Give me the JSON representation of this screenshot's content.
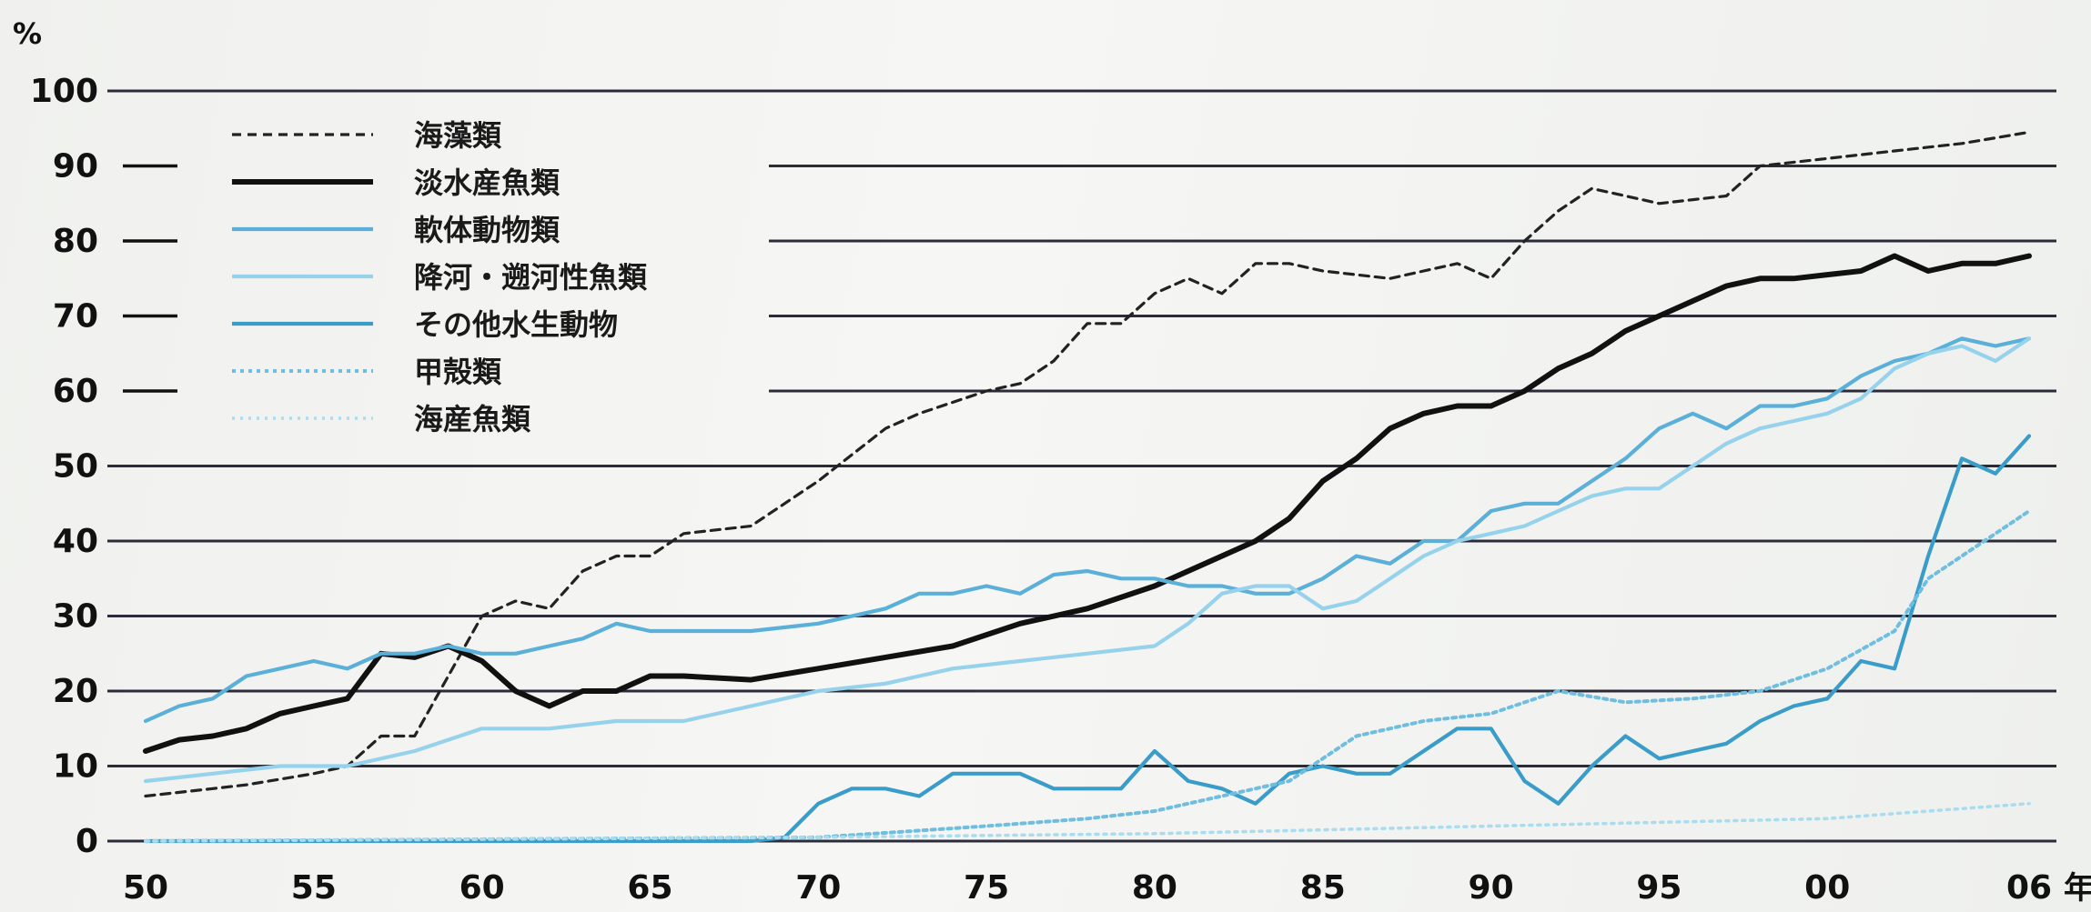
{
  "chart_data": {
    "type": "line",
    "y_unit": "%",
    "x_unit": "年",
    "ylim": [
      0,
      100
    ],
    "yticks": [
      0,
      10,
      20,
      30,
      40,
      50,
      60,
      70,
      80,
      90,
      100
    ],
    "xlim": [
      1950,
      2006
    ],
    "xticks": [
      {
        "value": 1950,
        "label": "50"
      },
      {
        "value": 1955,
        "label": "55"
      },
      {
        "value": 1960,
        "label": "60"
      },
      {
        "value": 1965,
        "label": "65"
      },
      {
        "value": 1970,
        "label": "70"
      },
      {
        "value": 1975,
        "label": "75"
      },
      {
        "value": 1980,
        "label": "80"
      },
      {
        "value": 1985,
        "label": "85"
      },
      {
        "value": 1990,
        "label": "90"
      },
      {
        "value": 1995,
        "label": "95"
      },
      {
        "value": 2000,
        "label": "00"
      },
      {
        "value": 2006,
        "label": "06"
      }
    ],
    "grid": true,
    "legend_position": "top-left",
    "series": [
      {
        "name": "海藻類",
        "color": "#222222",
        "style": "dashed",
        "points": [
          [
            1950,
            6
          ],
          [
            1952,
            7
          ],
          [
            1953,
            7.5
          ],
          [
            1955,
            9
          ],
          [
            1956,
            10
          ],
          [
            1957,
            14
          ],
          [
            1958,
            14
          ],
          [
            1960,
            30
          ],
          [
            1961,
            32
          ],
          [
            1962,
            31
          ],
          [
            1963,
            36
          ],
          [
            1964,
            38
          ],
          [
            1965,
            38
          ],
          [
            1966,
            41
          ],
          [
            1968,
            42
          ],
          [
            1970,
            48
          ],
          [
            1972,
            55
          ],
          [
            1973,
            57
          ],
          [
            1975,
            60
          ],
          [
            1976,
            61
          ],
          [
            1977,
            64
          ],
          [
            1978,
            69
          ],
          [
            1979,
            69
          ],
          [
            1980,
            73
          ],
          [
            1981,
            75
          ],
          [
            1982,
            73
          ],
          [
            1983,
            77
          ],
          [
            1984,
            77
          ],
          [
            1985,
            76
          ],
          [
            1987,
            75
          ],
          [
            1988,
            76
          ],
          [
            1989,
            77
          ],
          [
            1990,
            75
          ],
          [
            1991,
            80
          ],
          [
            1992,
            84
          ],
          [
            1993,
            87
          ],
          [
            1994,
            86
          ],
          [
            1995,
            85
          ],
          [
            1996,
            85.5
          ],
          [
            1997,
            86
          ],
          [
            1998,
            90
          ],
          [
            2000,
            91
          ],
          [
            2002,
            92
          ],
          [
            2004,
            93
          ],
          [
            2006,
            94.5
          ]
        ]
      },
      {
        "name": "淡水産魚類",
        "color": "#111111",
        "style": "solid-thick",
        "points": [
          [
            1950,
            12
          ],
          [
            1951,
            13.5
          ],
          [
            1952,
            14
          ],
          [
            1953,
            15
          ],
          [
            1954,
            17
          ],
          [
            1955,
            18
          ],
          [
            1956,
            19
          ],
          [
            1957,
            25
          ],
          [
            1958,
            24.5
          ],
          [
            1959,
            26
          ],
          [
            1960,
            24
          ],
          [
            1961,
            20
          ],
          [
            1962,
            18
          ],
          [
            1963,
            20
          ],
          [
            1964,
            20
          ],
          [
            1965,
            22
          ],
          [
            1966,
            22
          ],
          [
            1968,
            21.5
          ],
          [
            1970,
            23
          ],
          [
            1972,
            24.5
          ],
          [
            1974,
            26
          ],
          [
            1976,
            29
          ],
          [
            1978,
            31
          ],
          [
            1980,
            34
          ],
          [
            1981,
            36
          ],
          [
            1982,
            38
          ],
          [
            1983,
            40
          ],
          [
            1984,
            43
          ],
          [
            1985,
            48
          ],
          [
            1986,
            51
          ],
          [
            1987,
            55
          ],
          [
            1988,
            57
          ],
          [
            1989,
            58
          ],
          [
            1990,
            58
          ],
          [
            1991,
            60
          ],
          [
            1992,
            63
          ],
          [
            1993,
            65
          ],
          [
            1994,
            68
          ],
          [
            1995,
            70
          ],
          [
            1996,
            72
          ],
          [
            1997,
            74
          ],
          [
            1998,
            75
          ],
          [
            1999,
            75
          ],
          [
            2000,
            75.5
          ],
          [
            2001,
            76
          ],
          [
            2002,
            78
          ],
          [
            2003,
            76
          ],
          [
            2004,
            77
          ],
          [
            2005,
            77
          ],
          [
            2006,
            78
          ]
        ]
      },
      {
        "name": "軟体動物類",
        "color": "#5ab0d8",
        "style": "solid",
        "points": [
          [
            1950,
            16
          ],
          [
            1951,
            18
          ],
          [
            1952,
            19
          ],
          [
            1953,
            22
          ],
          [
            1954,
            23
          ],
          [
            1955,
            24
          ],
          [
            1956,
            23
          ],
          [
            1957,
            25
          ],
          [
            1958,
            25
          ],
          [
            1959,
            26
          ],
          [
            1960,
            25
          ],
          [
            1961,
            25
          ],
          [
            1962,
            26
          ],
          [
            1963,
            27
          ],
          [
            1964,
            29
          ],
          [
            1965,
            28
          ],
          [
            1966,
            28
          ],
          [
            1968,
            28
          ],
          [
            1970,
            29
          ],
          [
            1972,
            31
          ],
          [
            1973,
            33
          ],
          [
            1974,
            33
          ],
          [
            1975,
            34
          ],
          [
            1976,
            33
          ],
          [
            1977,
            35.5
          ],
          [
            1978,
            36
          ],
          [
            1979,
            35
          ],
          [
            1980,
            35
          ],
          [
            1981,
            34
          ],
          [
            1982,
            34
          ],
          [
            1983,
            33
          ],
          [
            1984,
            33
          ],
          [
            1985,
            35
          ],
          [
            1986,
            38
          ],
          [
            1987,
            37
          ],
          [
            1988,
            40
          ],
          [
            1989,
            40
          ],
          [
            1990,
            44
          ],
          [
            1991,
            45
          ],
          [
            1992,
            45
          ],
          [
            1993,
            48
          ],
          [
            1994,
            51
          ],
          [
            1995,
            55
          ],
          [
            1996,
            57
          ],
          [
            1997,
            55
          ],
          [
            1998,
            58
          ],
          [
            1999,
            58
          ],
          [
            2000,
            59
          ],
          [
            2001,
            62
          ],
          [
            2002,
            64
          ],
          [
            2003,
            65
          ],
          [
            2004,
            67
          ],
          [
            2005,
            66
          ],
          [
            2006,
            67
          ]
        ]
      },
      {
        "name": "降河・遡河性魚類",
        "color": "#96d2ec",
        "style": "solid",
        "points": [
          [
            1950,
            8
          ],
          [
            1952,
            9
          ],
          [
            1954,
            10
          ],
          [
            1956,
            10
          ],
          [
            1958,
            12
          ],
          [
            1960,
            15
          ],
          [
            1962,
            15
          ],
          [
            1964,
            16
          ],
          [
            1966,
            16
          ],
          [
            1968,
            18
          ],
          [
            1970,
            20
          ],
          [
            1972,
            21
          ],
          [
            1974,
            23
          ],
          [
            1976,
            24
          ],
          [
            1978,
            25
          ],
          [
            1980,
            26
          ],
          [
            1981,
            29
          ],
          [
            1982,
            33
          ],
          [
            1983,
            34
          ],
          [
            1984,
            34
          ],
          [
            1985,
            31
          ],
          [
            1986,
            32
          ],
          [
            1987,
            35
          ],
          [
            1988,
            38
          ],
          [
            1989,
            40
          ],
          [
            1990,
            41
          ],
          [
            1991,
            42
          ],
          [
            1992,
            44
          ],
          [
            1993,
            46
          ],
          [
            1994,
            47
          ],
          [
            1995,
            47
          ],
          [
            1996,
            50
          ],
          [
            1997,
            53
          ],
          [
            1998,
            55
          ],
          [
            1999,
            56
          ],
          [
            2000,
            57
          ],
          [
            2001,
            59
          ],
          [
            2002,
            63
          ],
          [
            2003,
            65
          ],
          [
            2004,
            66
          ],
          [
            2005,
            64
          ],
          [
            2006,
            67
          ]
        ]
      },
      {
        "name": "その他水生動物",
        "color": "#3a9cc8",
        "style": "solid",
        "points": [
          [
            1950,
            0
          ],
          [
            1968,
            0
          ],
          [
            1969,
            0.5
          ],
          [
            1970,
            5
          ],
          [
            1971,
            7
          ],
          [
            1972,
            7
          ],
          [
            1973,
            6
          ],
          [
            1974,
            9
          ],
          [
            1975,
            9
          ],
          [
            1976,
            9
          ],
          [
            1977,
            7
          ],
          [
            1978,
            7
          ],
          [
            1979,
            7
          ],
          [
            1980,
            12
          ],
          [
            1981,
            8
          ],
          [
            1982,
            7
          ],
          [
            1983,
            5
          ],
          [
            1984,
            9
          ],
          [
            1985,
            10
          ],
          [
            1986,
            9
          ],
          [
            1987,
            9
          ],
          [
            1988,
            12
          ],
          [
            1989,
            15
          ],
          [
            1990,
            15
          ],
          [
            1991,
            8
          ],
          [
            1992,
            5
          ],
          [
            1993,
            10
          ],
          [
            1994,
            14
          ],
          [
            1995,
            11
          ],
          [
            1996,
            12
          ],
          [
            1997,
            13
          ],
          [
            1998,
            16
          ],
          [
            1999,
            18
          ],
          [
            2000,
            19
          ],
          [
            2001,
            24
          ],
          [
            2002,
            23
          ],
          [
            2003,
            38
          ],
          [
            2004,
            51
          ],
          [
            2005,
            49
          ],
          [
            2006,
            54
          ]
        ]
      },
      {
        "name": "甲殻類",
        "color": "#6fbedf",
        "style": "dotted",
        "points": [
          [
            1950,
            0
          ],
          [
            1970,
            0.5
          ],
          [
            1975,
            2
          ],
          [
            1978,
            3
          ],
          [
            1980,
            4
          ],
          [
            1982,
            6
          ],
          [
            1984,
            8
          ],
          [
            1986,
            14
          ],
          [
            1988,
            16
          ],
          [
            1990,
            17
          ],
          [
            1992,
            20
          ],
          [
            1994,
            18.5
          ],
          [
            1996,
            19
          ],
          [
            1998,
            20
          ],
          [
            2000,
            23
          ],
          [
            2002,
            28
          ],
          [
            2003,
            35
          ],
          [
            2004,
            38
          ],
          [
            2006,
            44
          ]
        ]
      },
      {
        "name": "海産魚類",
        "color": "#a8dcee",
        "style": "dotted-light",
        "points": [
          [
            1950,
            0
          ],
          [
            1970,
            0.5
          ],
          [
            1980,
            1
          ],
          [
            1990,
            2
          ],
          [
            2000,
            3
          ],
          [
            2006,
            5
          ]
        ]
      }
    ]
  }
}
